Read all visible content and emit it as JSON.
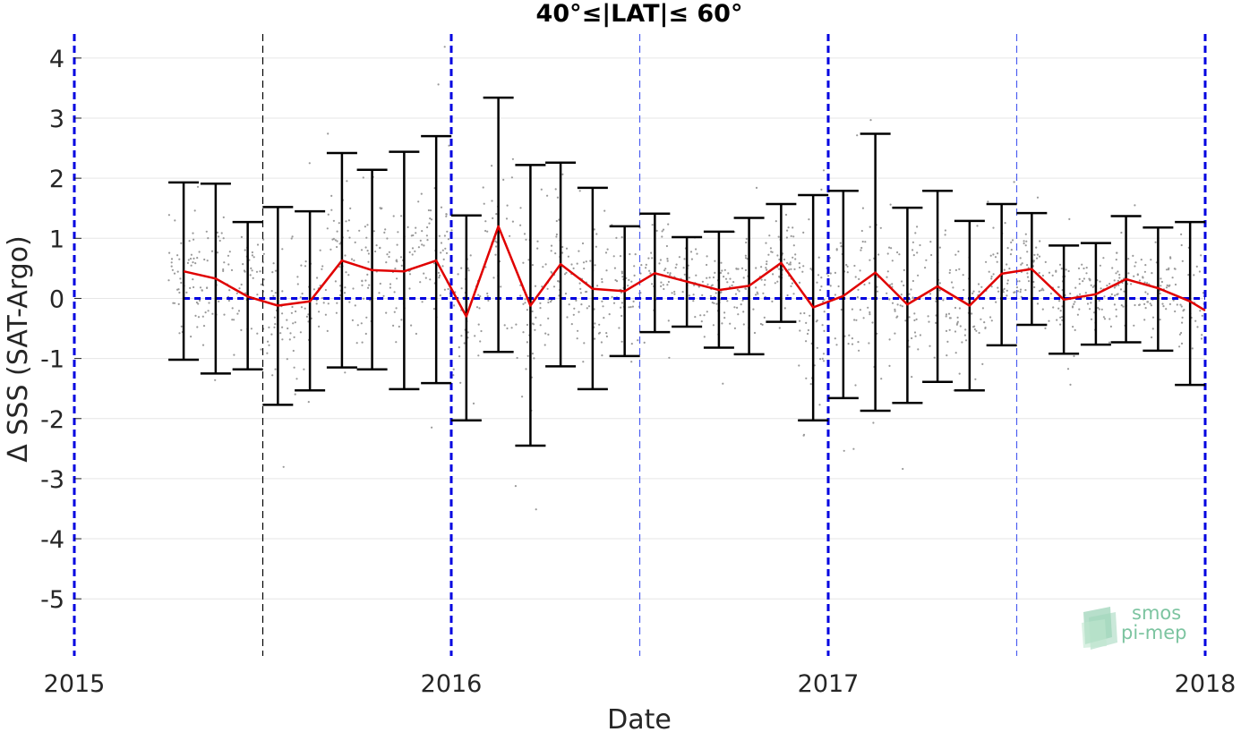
{
  "chart_data": {
    "type": "line",
    "title": "40°≤|LAT|≤ 60°",
    "xlabel": "Date",
    "ylabel": "Δ SSS (SAT-Argo)",
    "xlim": [
      2015.0,
      2018.0
    ],
    "ylim": [
      -5.95,
      4.4
    ],
    "x_ticks": [
      2015,
      2016,
      2017,
      2018
    ],
    "x_tick_labels": [
      "2015",
      "2016",
      "2017",
      "2018"
    ],
    "y_ticks": [
      4,
      3,
      2,
      1,
      0,
      -1,
      -2,
      -3,
      -4,
      -5
    ],
    "y_tick_labels": [
      "4",
      "3",
      "2",
      "1",
      "0",
      "-1",
      "-2",
      "-3",
      "-4",
      "-5"
    ],
    "grid": "horizontal",
    "zero_reference_line": 0,
    "year_boundaries": [
      2015.0,
      2016.0,
      2017.0,
      2018.0
    ],
    "half_year_markers": [
      2015.5,
      2016.5,
      2017.5
    ],
    "series": [
      {
        "kind": "mean_with_errorbars",
        "color": "#e00000",
        "errorbar_color": "#000000",
        "x": [
          2015.29,
          2015.375,
          2015.46,
          2015.54,
          2015.625,
          2015.71,
          2015.79,
          2015.875,
          2015.96,
          2016.04,
          2016.125,
          2016.21,
          2016.29,
          2016.375,
          2016.46,
          2016.54,
          2016.625,
          2016.71,
          2016.79,
          2016.875,
          2016.96,
          2017.04,
          2017.125,
          2017.21,
          2017.29,
          2017.375,
          2017.46,
          2017.54,
          2017.625,
          2017.71,
          2017.79,
          2017.875,
          2017.96
        ],
        "y": [
          0.45,
          0.33,
          0.03,
          -0.12,
          -0.05,
          0.63,
          0.47,
          0.45,
          0.63,
          -0.3,
          1.2,
          -0.12,
          0.57,
          0.16,
          0.12,
          0.42,
          0.28,
          0.14,
          0.21,
          0.59,
          -0.15,
          0.04,
          0.43,
          -0.1,
          0.2,
          -0.12,
          0.41,
          0.49,
          -0.02,
          0.07,
          0.32,
          0.17,
          -0.05
        ],
        "y_low": [
          -1.02,
          -1.25,
          -1.18,
          -1.77,
          -1.53,
          -1.15,
          -1.18,
          -1.51,
          -1.41,
          -2.03,
          -0.89,
          -2.45,
          -1.13,
          -1.51,
          -0.96,
          -0.56,
          -0.47,
          -0.82,
          -0.93,
          -0.39,
          -2.03,
          -1.66,
          -1.87,
          -1.74,
          -1.39,
          -1.53,
          -0.78,
          -0.44,
          -0.92,
          -0.77,
          -0.73,
          -0.87,
          -1.44
        ],
        "y_high": [
          1.93,
          1.91,
          1.27,
          1.52,
          1.45,
          2.42,
          2.14,
          2.44,
          2.7,
          1.38,
          3.34,
          2.22,
          2.26,
          1.84,
          1.2,
          1.41,
          1.02,
          1.11,
          1.34,
          1.57,
          1.72,
          1.79,
          2.74,
          1.51,
          1.79,
          1.29,
          1.57,
          1.42,
          0.88,
          0.92,
          1.37,
          1.18,
          1.27
        ]
      },
      {
        "kind": "scatter",
        "color": "#999999",
        "description_points": "individual match-up differences (dense cloud)"
      }
    ]
  },
  "colors": {
    "reference": "#0000e0",
    "half_year_light": "#4d5ff0",
    "half_year_dark": "#000000",
    "grid": "#e6e6e6",
    "text": "#262626"
  },
  "logo": {
    "line1": "smos",
    "line2": "pi-mep",
    "color": "#7cc4a0"
  }
}
